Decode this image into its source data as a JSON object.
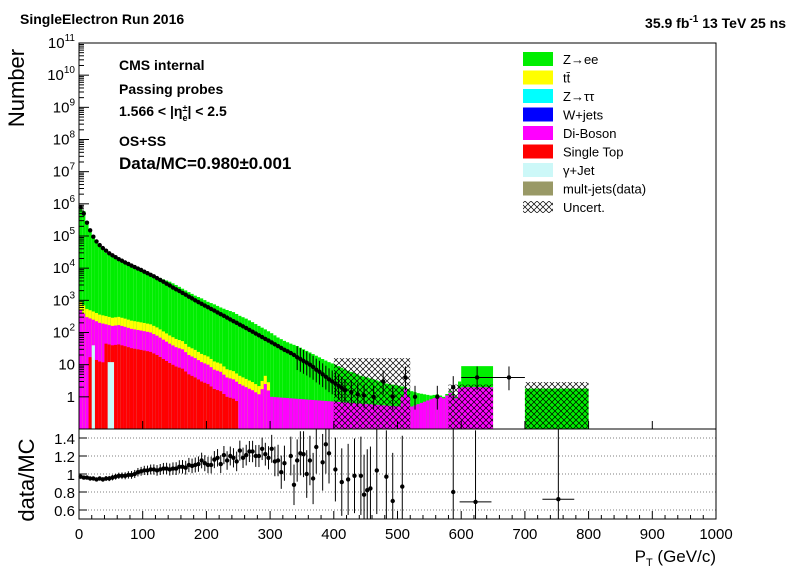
{
  "header": {
    "left": "SingleElectron Run 2016",
    "right_lumi": "35.9 fb",
    "right_exp": "-1",
    "right_rest": " 13 TeV 25 ns"
  },
  "annotations": {
    "cms": "CMS internal",
    "passing": "Passing probes",
    "eta_low": "1.566 < |η",
    "eta_sub": "e",
    "eta_sup": "±",
    "eta_high": "| < 2.5",
    "charge": "OS+SS",
    "ratio": "Data/MC=0.980±0.001"
  },
  "colors": {
    "zee": "#00ee00",
    "ttbar": "#ffff00",
    "ztautau": "#00ffff",
    "wjets": "#0000ff",
    "diboson": "#ff00ff",
    "singletop": "#ff0000",
    "gammajet": "#ccf8f8",
    "multijets": "#999966",
    "data": "#000000"
  },
  "chart_data": [
    {
      "type": "area",
      "subtype": "stacked-histogram",
      "ylabel": "Number",
      "yscale": "log",
      "ylim": [
        0.1,
        100000000000
      ],
      "xlim": [
        0,
        1000
      ],
      "y_ticks": [
        {
          "base": "",
          "exp": "",
          "plain": "1",
          "v": 1
        },
        {
          "base": "",
          "exp": "",
          "plain": "10",
          "v": 10
        },
        {
          "base": "10",
          "exp": "2",
          "plain": "",
          "v": 100
        },
        {
          "base": "10",
          "exp": "3",
          "plain": "",
          "v": 1000
        },
        {
          "base": "10",
          "exp": "4",
          "plain": "",
          "v": 10000
        },
        {
          "base": "10",
          "exp": "5",
          "plain": "",
          "v": 100000
        },
        {
          "base": "10",
          "exp": "6",
          "plain": "",
          "v": 1000000
        },
        {
          "base": "10",
          "exp": "7",
          "plain": "",
          "v": 10000000
        },
        {
          "base": "10",
          "exp": "8",
          "plain": "",
          "v": 100000000
        },
        {
          "base": "10",
          "exp": "9",
          "plain": "",
          "v": 1000000000
        },
        {
          "base": "10",
          "exp": "10",
          "plain": "",
          "v": 10000000000
        },
        {
          "base": "10",
          "exp": "11",
          "plain": "",
          "v": 100000000000
        }
      ],
      "legend_position": "top-right",
      "legend": [
        {
          "label": "Z→ee",
          "key": "zee",
          "style": "fill"
        },
        {
          "label": "tt̄",
          "key": "ttbar",
          "style": "fill"
        },
        {
          "label": "Z→ττ",
          "key": "ztautau",
          "style": "fill"
        },
        {
          "label": "W+jets",
          "key": "wjets",
          "style": "fill"
        },
        {
          "label": "Di-Boson",
          "key": "diboson",
          "style": "fill"
        },
        {
          "label": "Single Top",
          "key": "singletop",
          "style": "fill"
        },
        {
          "label": "γ+Jet",
          "key": "gammajet",
          "style": "fill"
        },
        {
          "label": "mult-jets(data)",
          "key": "multijets",
          "style": "fill"
        },
        {
          "label": "Uncert.",
          "key": "uncert",
          "style": "hatch"
        }
      ],
      "bin_width": 5,
      "variable_bins": [
        [
          600,
          650
        ],
        [
          700,
          800
        ]
      ],
      "total_mc_envelope": [
        [
          0,
          800000
        ],
        [
          5,
          600000
        ],
        [
          10,
          250000
        ],
        [
          15,
          150000
        ],
        [
          20,
          90000
        ],
        [
          25,
          70000
        ],
        [
          30,
          50000
        ],
        [
          40,
          30000
        ],
        [
          50,
          22000
        ],
        [
          60,
          18000
        ],
        [
          70,
          15000
        ],
        [
          80,
          12000
        ],
        [
          90,
          10000
        ],
        [
          100,
          8500
        ],
        [
          110,
          7000
        ],
        [
          120,
          5500
        ],
        [
          130,
          4500
        ],
        [
          140,
          3800
        ],
        [
          150,
          3000
        ],
        [
          160,
          2300
        ],
        [
          170,
          1800
        ],
        [
          180,
          1400
        ],
        [
          190,
          1150
        ],
        [
          200,
          900
        ],
        [
          210,
          750
        ],
        [
          220,
          600
        ],
        [
          230,
          500
        ],
        [
          240,
          430
        ],
        [
          250,
          330
        ],
        [
          260,
          270
        ],
        [
          270,
          210
        ],
        [
          280,
          160
        ],
        [
          290,
          125
        ],
        [
          300,
          95
        ],
        [
          310,
          70
        ],
        [
          320,
          55
        ],
        [
          330,
          45
        ],
        [
          340,
          38
        ],
        [
          350,
          30
        ],
        [
          360,
          24
        ],
        [
          370,
          19
        ],
        [
          380,
          15
        ],
        [
          390,
          12
        ],
        [
          400,
          10
        ],
        [
          410,
          8
        ],
        [
          420,
          6.5
        ],
        [
          430,
          5.5
        ],
        [
          440,
          4.5
        ],
        [
          450,
          4
        ],
        [
          460,
          3.5
        ],
        [
          470,
          3
        ],
        [
          480,
          2.6
        ],
        [
          490,
          2.4
        ],
        [
          500,
          2.2
        ],
        [
          510,
          2
        ],
        [
          520,
          1.5
        ],
        [
          530,
          1.3
        ],
        [
          540,
          1.2
        ],
        [
          550,
          1.1
        ],
        [
          560,
          1.2
        ],
        [
          570,
          1.0
        ],
        [
          580,
          1.5
        ],
        [
          590,
          1.0
        ],
        [
          600,
          9
        ],
        [
          650,
          0
        ],
        [
          700,
          1.8
        ],
        [
          800,
          0
        ]
      ],
      "diboson_envelope": [
        [
          0,
          500
        ],
        [
          10,
          300
        ],
        [
          20,
          250
        ],
        [
          30,
          200
        ],
        [
          40,
          180
        ],
        [
          50,
          160
        ],
        [
          60,
          170
        ],
        [
          70,
          150
        ],
        [
          80,
          130
        ],
        [
          90,
          120
        ],
        [
          100,
          110
        ],
        [
          110,
          100
        ],
        [
          120,
          80
        ],
        [
          130,
          60
        ],
        [
          140,
          45
        ],
        [
          150,
          35
        ],
        [
          160,
          30
        ],
        [
          170,
          20
        ],
        [
          180,
          16
        ],
        [
          190,
          12
        ],
        [
          200,
          10
        ],
        [
          210,
          7
        ],
        [
          220,
          6
        ],
        [
          230,
          4
        ],
        [
          240,
          3.5
        ],
        [
          250,
          2.5
        ],
        [
          260,
          2
        ],
        [
          270,
          1.6
        ],
        [
          280,
          1.2
        ],
        [
          290,
          2.5
        ],
        [
          300,
          1
        ],
        [
          500,
          0.5
        ],
        [
          510,
          2
        ],
        [
          520,
          0.5
        ],
        [
          600,
          2
        ],
        [
          650,
          0
        ]
      ],
      "data_points": [
        [
          2.5,
          780000
        ],
        [
          7.5,
          500000
        ],
        [
          12.5,
          260000
        ],
        [
          17.5,
          150000
        ],
        [
          22.5,
          95000
        ],
        [
          27.5,
          68000
        ],
        [
          32.5,
          52000
        ],
        [
          37.5,
          42000
        ],
        [
          42.5,
          35000
        ],
        [
          47.5,
          29000
        ],
        [
          52.5,
          25000
        ],
        [
          57.5,
          22000
        ],
        [
          62.5,
          19000
        ],
        [
          67.5,
          17000
        ],
        [
          72.5,
          15000
        ],
        [
          77.5,
          13500
        ],
        [
          82.5,
          12000
        ],
        [
          87.5,
          10800
        ],
        [
          92.5,
          9700
        ],
        [
          97.5,
          8800
        ],
        [
          102.5,
          7800
        ],
        [
          107.5,
          7000
        ],
        [
          112.5,
          6200
        ],
        [
          117.5,
          5600
        ],
        [
          122.5,
          4900
        ],
        [
          127.5,
          4300
        ],
        [
          132.5,
          3800
        ],
        [
          137.5,
          3300
        ],
        [
          142.5,
          2900
        ],
        [
          147.5,
          2500
        ],
        [
          152.5,
          2200
        ],
        [
          157.5,
          1950
        ],
        [
          162.5,
          1700
        ],
        [
          167.5,
          1500
        ],
        [
          172.5,
          1300
        ],
        [
          177.5,
          1150
        ],
        [
          182.5,
          1000
        ],
        [
          187.5,
          880
        ],
        [
          192.5,
          780
        ],
        [
          197.5,
          690
        ],
        [
          202.5,
          610
        ],
        [
          207.5,
          540
        ],
        [
          212.5,
          480
        ],
        [
          217.5,
          420
        ],
        [
          222.5,
          370
        ],
        [
          227.5,
          330
        ],
        [
          232.5,
          290
        ],
        [
          237.5,
          255
        ],
        [
          242.5,
          225
        ],
        [
          247.5,
          200
        ],
        [
          252.5,
          175
        ],
        [
          257.5,
          155
        ],
        [
          262.5,
          137
        ],
        [
          267.5,
          120
        ],
        [
          272.5,
          106
        ],
        [
          277.5,
          93
        ],
        [
          282.5,
          82
        ],
        [
          287.5,
          72
        ],
        [
          292.5,
          63
        ],
        [
          297.5,
          56
        ],
        [
          302.5,
          49
        ],
        [
          307.5,
          43
        ],
        [
          312.5,
          38
        ],
        [
          317.5,
          33
        ],
        [
          322.5,
          29
        ],
        [
          327.5,
          26
        ],
        [
          332.5,
          23
        ],
        [
          337.5,
          20
        ],
        [
          342.5,
          17
        ],
        [
          347.5,
          15
        ],
        [
          352.5,
          13
        ],
        [
          357.5,
          11.5
        ],
        [
          362.5,
          10
        ],
        [
          367.5,
          8.5
        ],
        [
          372.5,
          7
        ],
        [
          377.5,
          6
        ],
        [
          382.5,
          5
        ],
        [
          387.5,
          4.2
        ],
        [
          392.5,
          3.5
        ],
        [
          397.5,
          3
        ],
        [
          402.5,
          2.6
        ],
        [
          407.5,
          2.2
        ],
        [
          412.5,
          1.9
        ],
        [
          417.5,
          1.6
        ],
        [
          427.5,
          1.4
        ],
        [
          437.5,
          1.2
        ],
        [
          447.5,
          1.1
        ],
        [
          462.5,
          1.0
        ],
        [
          477.5,
          3
        ],
        [
          492.5,
          1.0
        ],
        [
          512.5,
          4
        ],
        [
          527.5,
          1.0
        ],
        [
          562.5,
          1.0
        ],
        [
          587.5,
          2
        ],
        [
          625,
          4
        ],
        [
          675,
          4
        ]
      ],
      "uncertainty_bands": [
        [
          400,
          520
        ],
        [
          580,
          650
        ],
        [
          700,
          800
        ]
      ]
    },
    {
      "type": "scatter",
      "subtype": "ratio-panel",
      "ylabel": "data/MC",
      "xlabel": "P",
      "xlabel_sub": "T",
      "xlabel_unit": " (GeV/c)",
      "ylim": [
        0.5,
        1.5
      ],
      "xlim": [
        0,
        1000
      ],
      "y_ticks": [
        "0.6",
        "0.8",
        "1",
        "1.2",
        "1.4"
      ],
      "y_tick_values": [
        0.6,
        0.8,
        1.0,
        1.2,
        1.4
      ],
      "x_ticks": [
        "0",
        "100",
        "200",
        "300",
        "400",
        "500",
        "600",
        "700",
        "800",
        "900",
        "1000"
      ],
      "x_tick_values": [
        0,
        100,
        200,
        300,
        400,
        500,
        600,
        700,
        800,
        900,
        1000
      ],
      "grid": true,
      "points": [
        [
          2.5,
          0.97
        ],
        [
          7.5,
          0.96
        ],
        [
          12.5,
          0.96
        ],
        [
          17.5,
          0.95
        ],
        [
          22.5,
          0.95
        ],
        [
          27.5,
          0.94
        ],
        [
          32.5,
          0.95
        ],
        [
          37.5,
          0.94
        ],
        [
          42.5,
          0.95
        ],
        [
          47.5,
          0.95
        ],
        [
          52.5,
          0.96
        ],
        [
          57.5,
          0.97
        ],
        [
          62.5,
          0.98
        ],
        [
          67.5,
          0.98
        ],
        [
          72.5,
          0.98
        ],
        [
          77.5,
          0.99
        ],
        [
          82.5,
          0.99
        ],
        [
          87.5,
          1.0
        ],
        [
          92.5,
          1.02
        ],
        [
          97.5,
          1.03
        ],
        [
          102.5,
          1.04
        ],
        [
          107.5,
          1.04
        ],
        [
          112.5,
          1.05
        ],
        [
          117.5,
          1.05
        ],
        [
          122.5,
          1.04
        ],
        [
          127.5,
          1.05
        ],
        [
          132.5,
          1.06
        ],
        [
          137.5,
          1.06
        ],
        [
          142.5,
          1.05
        ],
        [
          147.5,
          1.06
        ],
        [
          152.5,
          1.06
        ],
        [
          157.5,
          1.08
        ],
        [
          162.5,
          1.08
        ],
        [
          167.5,
          1.07
        ],
        [
          172.5,
          1.1
        ],
        [
          177.5,
          1.09
        ],
        [
          182.5,
          1.1
        ],
        [
          187.5,
          1.11
        ],
        [
          192.5,
          1.15
        ],
        [
          197.5,
          1.12
        ],
        [
          202.5,
          1.1
        ],
        [
          207.5,
          1.1
        ],
        [
          212.5,
          1.16
        ],
        [
          217.5,
          1.18
        ],
        [
          222.5,
          1.11
        ],
        [
          227.5,
          1.21
        ],
        [
          232.5,
          1.15
        ],
        [
          237.5,
          1.2
        ],
        [
          242.5,
          1.18
        ],
        [
          247.5,
          1.14
        ],
        [
          252.5,
          1.26
        ],
        [
          257.5,
          1.18
        ],
        [
          262.5,
          1.21
        ],
        [
          267.5,
          1.25
        ],
        [
          272.5,
          1.25
        ],
        [
          277.5,
          1.2
        ],
        [
          282.5,
          1.2
        ],
        [
          287.5,
          1.28
        ],
        [
          292.5,
          1.22
        ],
        [
          297.5,
          1.18
        ],
        [
          302.5,
          1.28
        ],
        [
          307.5,
          1.14
        ],
        [
          312.5,
          1.15
        ],
        [
          317.5,
          1.02
        ],
        [
          322.5,
          1.12
        ],
        [
          332.5,
          1.2
        ],
        [
          337.5,
          0.88
        ],
        [
          342.5,
          1.15
        ],
        [
          347.5,
          1.23
        ],
        [
          352.5,
          1.22
        ],
        [
          357.5,
          1.0
        ],
        [
          362.5,
          1.15
        ],
        [
          367.5,
          0.95
        ],
        [
          372.5,
          1.3
        ],
        [
          382.5,
          1.13
        ],
        [
          387.5,
          1.33
        ],
        [
          392.5,
          1.23
        ],
        [
          402.5,
          1.05
        ],
        [
          412.5,
          0.91
        ],
        [
          422.5,
          0.94
        ],
        [
          432.5,
          0.98
        ],
        [
          442.5,
          0.98
        ],
        [
          447.5,
          0.77
        ],
        [
          452.5,
          0.82
        ],
        [
          457.5,
          0.84
        ],
        [
          467.5,
          1.04
        ],
        [
          482.5,
          0.97
        ],
        [
          492.5,
          0.7
        ],
        [
          507.5,
          0.86
        ],
        [
          587.5,
          0.8
        ],
        [
          622.5,
          0.69
        ],
        [
          752.5,
          0.72
        ]
      ]
    }
  ]
}
